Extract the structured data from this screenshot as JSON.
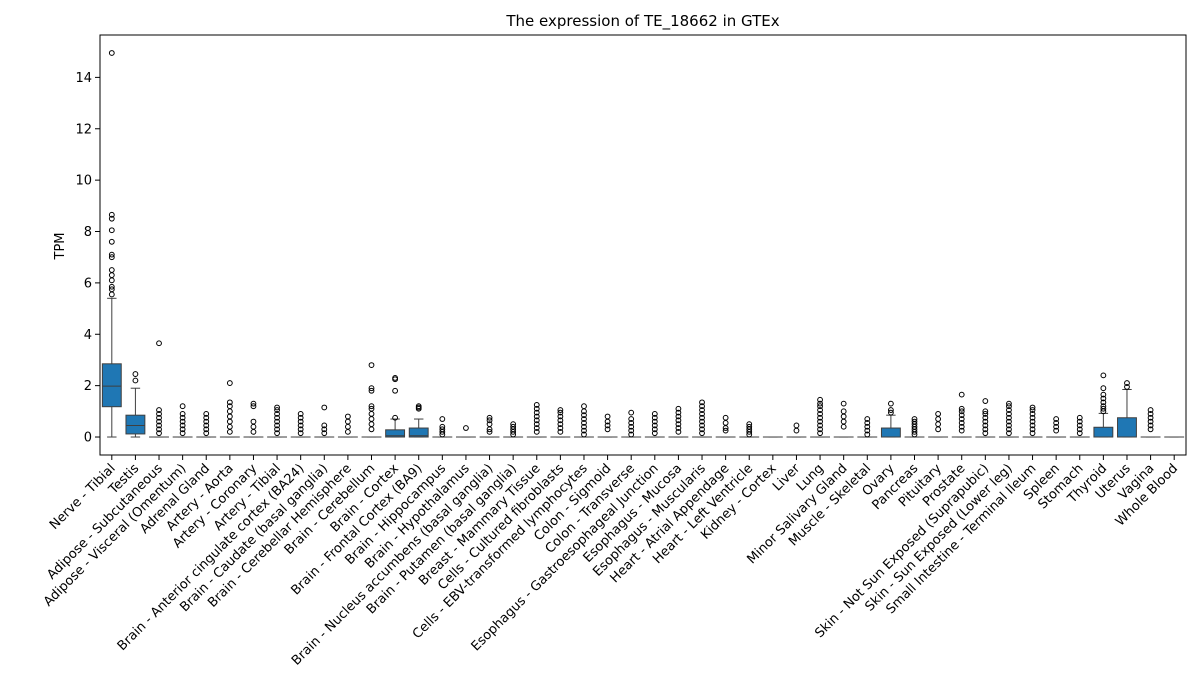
{
  "chart_data": {
    "type": "box",
    "title": "The expression of TE_18662 in GTEx",
    "xlabel": "",
    "ylabel": "TPM",
    "ylim": [
      -0.7,
      15.65
    ],
    "yticks": [
      0,
      2,
      4,
      6,
      8,
      10,
      12,
      14
    ],
    "grid": false,
    "box_color": "#1f77b4",
    "categories": [
      "Nerve - Tibial",
      "Testis",
      "Adipose - Subcutaneous",
      "Adipose - Visceral (Omentum)",
      "Adrenal Gland",
      "Artery - Aorta",
      "Artery - Coronary",
      "Artery - Tibial",
      "Brain - Anterior cingulate cortex (BA24)",
      "Brain - Caudate (basal ganglia)",
      "Brain - Cerebellar Hemisphere",
      "Brain - Cerebellum",
      "Brain - Cortex",
      "Brain - Frontal Cortex (BA9)",
      "Brain - Hippocampus",
      "Brain - Hypothalamus",
      "Brain - Nucleus accumbens (basal ganglia)",
      "Brain - Putamen (basal ganglia)",
      "Breast - Mammary Tissue",
      "Cells - Cultured fibroblasts",
      "Cells - EBV-transformed lymphocytes",
      "Colon - Sigmoid",
      "Colon - Transverse",
      "Esophagus - Gastroesophageal Junction",
      "Esophagus - Mucosa",
      "Esophagus - Muscularis",
      "Heart - Atrial Appendage",
      "Heart - Left Ventricle",
      "Kidney - Cortex",
      "Liver",
      "Lung",
      "Minor Salivary Gland",
      "Muscle - Skeletal",
      "Ovary",
      "Pancreas",
      "Pituitary",
      "Prostate",
      "Skin - Not Sun Exposed (Suprapubic)",
      "Skin - Sun Exposed (Lower leg)",
      "Small Intestine - Terminal Ileum",
      "Spleen",
      "Stomach",
      "Thyroid",
      "Uterus",
      "Vagina",
      "Whole Blood"
    ],
    "boxes": [
      {
        "q1": 1.18,
        "median": 1.98,
        "q3": 2.85,
        "whislo": 0,
        "whishi": 5.4,
        "fliers": [
          5.55,
          5.75,
          5.85,
          6.1,
          6.3,
          6.5,
          7.0,
          7.1,
          7.6,
          8.05,
          8.5,
          8.65,
          14.95
        ]
      },
      {
        "q1": 0.12,
        "median": 0.45,
        "q3": 0.85,
        "whislo": 0,
        "whishi": 1.9,
        "fliers": [
          2.2,
          2.45
        ]
      },
      {
        "q1": 0,
        "median": 0,
        "q3": 0,
        "whislo": 0,
        "whishi": 0,
        "fliers": [
          0.15,
          0.3,
          0.45,
          0.6,
          0.75,
          0.9,
          1.05,
          3.65
        ]
      },
      {
        "q1": 0,
        "median": 0,
        "q3": 0,
        "whislo": 0,
        "whishi": 0,
        "fliers": [
          0.15,
          0.3,
          0.45,
          0.6,
          0.75,
          0.9,
          1.2
        ]
      },
      {
        "q1": 0,
        "median": 0,
        "q3": 0,
        "whislo": 0,
        "whishi": 0,
        "fliers": [
          0.15,
          0.3,
          0.45,
          0.6,
          0.75,
          0.9
        ]
      },
      {
        "q1": 0,
        "median": 0,
        "q3": 0,
        "whislo": 0,
        "whishi": 0,
        "fliers": [
          0.2,
          0.4,
          0.6,
          0.8,
          1.0,
          1.2,
          1.35,
          2.1
        ]
      },
      {
        "q1": 0,
        "median": 0,
        "q3": 0,
        "whislo": 0,
        "whishi": 0,
        "fliers": [
          0.2,
          0.4,
          0.6,
          1.2,
          1.3
        ]
      },
      {
        "q1": 0,
        "median": 0,
        "q3": 0,
        "whislo": 0,
        "whishi": 0,
        "fliers": [
          0.15,
          0.3,
          0.45,
          0.6,
          0.75,
          0.9,
          1.05,
          1.15
        ]
      },
      {
        "q1": 0,
        "median": 0,
        "q3": 0,
        "whislo": 0,
        "whishi": 0,
        "fliers": [
          0.15,
          0.3,
          0.45,
          0.6,
          0.75,
          0.9
        ]
      },
      {
        "q1": 0,
        "median": 0,
        "q3": 0,
        "whislo": 0,
        "whishi": 0,
        "fliers": [
          0.15,
          0.3,
          0.45,
          1.15
        ]
      },
      {
        "q1": 0,
        "median": 0,
        "q3": 0,
        "whislo": 0,
        "whishi": 0,
        "fliers": [
          0.2,
          0.4,
          0.6,
          0.8
        ]
      },
      {
        "q1": 0,
        "median": 0,
        "q3": 0,
        "whislo": 0,
        "whishi": 0,
        "fliers": [
          0.3,
          0.5,
          0.7,
          0.9,
          1.1,
          1.2,
          1.8,
          1.9,
          2.8
        ]
      },
      {
        "q1": 0,
        "median": 0.05,
        "q3": 0.28,
        "whislo": 0,
        "whishi": 0.7,
        "fliers": [
          0.75,
          1.8,
          2.25,
          2.3
        ]
      },
      {
        "q1": 0,
        "median": 0.05,
        "q3": 0.35,
        "whislo": 0,
        "whishi": 0.7,
        "fliers": [
          1.1,
          1.15,
          1.2
        ]
      },
      {
        "q1": 0,
        "median": 0,
        "q3": 0,
        "whislo": 0,
        "whishi": 0,
        "fliers": [
          0.1,
          0.2,
          0.3,
          0.4,
          0.7
        ]
      },
      {
        "q1": 0,
        "median": 0,
        "q3": 0,
        "whislo": 0,
        "whishi": 0,
        "fliers": [
          0.35
        ]
      },
      {
        "q1": 0,
        "median": 0,
        "q3": 0,
        "whislo": 0,
        "whishi": 0,
        "fliers": [
          0.2,
          0.3,
          0.5,
          0.65,
          0.75
        ]
      },
      {
        "q1": 0,
        "median": 0,
        "q3": 0,
        "whislo": 0,
        "whishi": 0,
        "fliers": [
          0.1,
          0.2,
          0.3,
          0.4,
          0.5
        ]
      },
      {
        "q1": 0,
        "median": 0,
        "q3": 0,
        "whislo": 0,
        "whishi": 0,
        "fliers": [
          0.2,
          0.35,
          0.5,
          0.65,
          0.8,
          0.95,
          1.1,
          1.25
        ]
      },
      {
        "q1": 0,
        "median": 0,
        "q3": 0,
        "whislo": 0,
        "whishi": 0,
        "fliers": [
          0.2,
          0.35,
          0.5,
          0.65,
          0.8,
          0.95,
          1.05
        ]
      },
      {
        "q1": 0,
        "median": 0,
        "q3": 0,
        "whislo": 0,
        "whishi": 0,
        "fliers": [
          0.1,
          0.25,
          0.4,
          0.55,
          0.7,
          0.85,
          1.0,
          1.2
        ]
      },
      {
        "q1": 0,
        "median": 0,
        "q3": 0,
        "whislo": 0,
        "whishi": 0,
        "fliers": [
          0.3,
          0.45,
          0.6,
          0.8
        ]
      },
      {
        "q1": 0,
        "median": 0,
        "q3": 0,
        "whislo": 0,
        "whishi": 0,
        "fliers": [
          0.1,
          0.25,
          0.4,
          0.55,
          0.7,
          0.95
        ]
      },
      {
        "q1": 0,
        "median": 0,
        "q3": 0,
        "whislo": 0,
        "whishi": 0,
        "fliers": [
          0.15,
          0.3,
          0.45,
          0.6,
          0.75,
          0.9
        ]
      },
      {
        "q1": 0,
        "median": 0,
        "q3": 0,
        "whislo": 0,
        "whishi": 0,
        "fliers": [
          0.2,
          0.35,
          0.5,
          0.65,
          0.8,
          0.95,
          1.1
        ]
      },
      {
        "q1": 0,
        "median": 0,
        "q3": 0,
        "whislo": 0,
        "whishi": 0,
        "fliers": [
          0.15,
          0.3,
          0.45,
          0.6,
          0.75,
          0.9,
          1.05,
          1.2,
          1.35
        ]
      },
      {
        "q1": 0,
        "median": 0,
        "q3": 0,
        "whislo": 0,
        "whishi": 0,
        "fliers": [
          0.25,
          0.35,
          0.55,
          0.75
        ]
      },
      {
        "q1": 0,
        "median": 0,
        "q3": 0,
        "whislo": 0,
        "whishi": 0,
        "fliers": [
          0.1,
          0.2,
          0.3,
          0.4,
          0.5
        ]
      },
      {
        "q1": 0,
        "median": 0,
        "q3": 0,
        "whislo": 0,
        "whishi": 0,
        "fliers": []
      },
      {
        "q1": 0,
        "median": 0,
        "q3": 0,
        "whislo": 0,
        "whishi": 0,
        "fliers": [
          0.25,
          0.45
        ]
      },
      {
        "q1": 0,
        "median": 0,
        "q3": 0,
        "whislo": 0,
        "whishi": 0,
        "fliers": [
          0.15,
          0.3,
          0.45,
          0.6,
          0.75,
          0.9,
          1.05,
          1.2,
          1.3,
          1.45
        ]
      },
      {
        "q1": 0,
        "median": 0,
        "q3": 0,
        "whislo": 0,
        "whishi": 0,
        "fliers": [
          0.4,
          0.6,
          0.8,
          1.0,
          1.3
        ]
      },
      {
        "q1": 0,
        "median": 0,
        "q3": 0,
        "whislo": 0,
        "whishi": 0,
        "fliers": [
          0.1,
          0.25,
          0.4,
          0.55,
          0.7
        ]
      },
      {
        "q1": 0,
        "median": 0,
        "q3": 0.35,
        "whislo": 0,
        "whishi": 0.85,
        "fliers": [
          0.95,
          1.05,
          1.3
        ]
      },
      {
        "q1": 0,
        "median": 0,
        "q3": 0,
        "whislo": 0,
        "whishi": 0,
        "fliers": [
          0.1,
          0.2,
          0.3,
          0.4,
          0.5,
          0.6,
          0.7
        ]
      },
      {
        "q1": 0,
        "median": 0,
        "q3": 0,
        "whislo": 0,
        "whishi": 0,
        "fliers": [
          0.3,
          0.5,
          0.7,
          0.9
        ]
      },
      {
        "q1": 0,
        "median": 0,
        "q3": 0,
        "whislo": 0,
        "whishi": 0,
        "fliers": [
          0.25,
          0.4,
          0.55,
          0.7,
          0.85,
          1.0,
          1.1,
          1.65
        ]
      },
      {
        "q1": 0,
        "median": 0,
        "q3": 0,
        "whislo": 0,
        "whishi": 0,
        "fliers": [
          0.15,
          0.3,
          0.45,
          0.6,
          0.75,
          0.9,
          1.0,
          1.4
        ]
      },
      {
        "q1": 0,
        "median": 0,
        "q3": 0,
        "whislo": 0,
        "whishi": 0,
        "fliers": [
          0.15,
          0.3,
          0.45,
          0.6,
          0.75,
          0.9,
          1.05,
          1.2,
          1.3
        ]
      },
      {
        "q1": 0,
        "median": 0,
        "q3": 0,
        "whislo": 0,
        "whishi": 0,
        "fliers": [
          0.15,
          0.3,
          0.45,
          0.6,
          0.75,
          0.9,
          1.05,
          1.15
        ]
      },
      {
        "q1": 0,
        "median": 0,
        "q3": 0,
        "whislo": 0,
        "whishi": 0,
        "fliers": [
          0.25,
          0.4,
          0.55,
          0.7
        ]
      },
      {
        "q1": 0,
        "median": 0,
        "q3": 0,
        "whislo": 0,
        "whishi": 0,
        "fliers": [
          0.15,
          0.3,
          0.45,
          0.6,
          0.75
        ]
      },
      {
        "q1": 0,
        "median": 0,
        "q3": 0.38,
        "whislo": 0,
        "whishi": 0.92,
        "fliers": [
          1.0,
          1.1,
          1.2,
          1.35,
          1.5,
          1.65,
          1.9,
          2.4
        ]
      },
      {
        "q1": 0,
        "median": 0,
        "q3": 0.75,
        "whislo": 0,
        "whishi": 1.85,
        "fliers": [
          1.95,
          2.1
        ]
      },
      {
        "q1": 0,
        "median": 0,
        "q3": 0,
        "whislo": 0,
        "whishi": 0,
        "fliers": [
          0.3,
          0.45,
          0.6,
          0.75,
          0.9,
          1.05
        ]
      },
      {
        "q1": 0,
        "median": 0,
        "q3": 0,
        "whislo": 0,
        "whishi": 0,
        "fliers": []
      }
    ]
  }
}
